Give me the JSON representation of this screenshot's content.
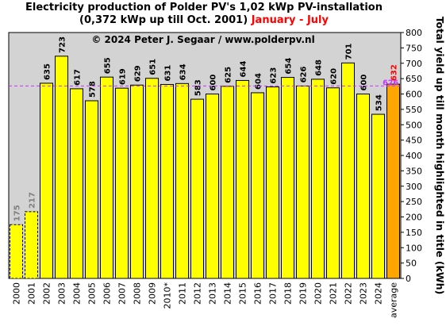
{
  "title": {
    "line1": "Electricity production  of Polder PV's 1,02 kWp PV-installation",
    "line2": "(0,372 kWp up till Oct. 2001)",
    "period": "January - July"
  },
  "copyright": "© 2024 Peter J. Segaar / www.polderpv.nl",
  "colors": {
    "plot_background": "#d3d3d3",
    "bar_fill": "#ffff00",
    "average_fill": "#ffa500",
    "reference_line": "#cc33ff",
    "muted_label": "#808080",
    "period_text": "#ff0000"
  },
  "chart_data": {
    "type": "bar",
    "categories": [
      "2000",
      "2001",
      "2002",
      "2003",
      "2004",
      "2005",
      "2006",
      "2007",
      "2008",
      "2009",
      "2010*",
      "2011",
      "2012",
      "2013",
      "2014",
      "2015",
      "2016",
      "2017",
      "2018",
      "2019",
      "2020",
      "2021",
      "2022",
      "2023",
      "2024",
      "average"
    ],
    "values": [
      175,
      217,
      635,
      723,
      617,
      578,
      655,
      619,
      629,
      651,
      631,
      634,
      583,
      600,
      625,
      644,
      604,
      623,
      654,
      626,
      648,
      620,
      701,
      600,
      534,
      632
    ],
    "labels": [
      "175",
      "217",
      "635",
      "723",
      "617",
      "578",
      "655",
      "619",
      "629",
      "651",
      "631",
      "634",
      "583",
      "600",
      "625",
      "644",
      "604",
      "623",
      "654",
      "626",
      "648",
      "620",
      "701",
      "600",
      "534",
      "632"
    ],
    "bar_styles": [
      "dashed",
      "dashed",
      "normal",
      "normal",
      "normal",
      "normal",
      "normal",
      "normal",
      "normal",
      "normal",
      "normal",
      "normal",
      "normal",
      "normal",
      "normal",
      "normal",
      "normal",
      "normal",
      "normal",
      "normal",
      "normal",
      "normal",
      "normal",
      "normal",
      "normal",
      "average"
    ],
    "reference_line": {
      "value": 626,
      "label": "626"
    },
    "ylabel": "Total yield up till month highlighted in title (kWh)",
    "ylim": [
      0,
      800
    ],
    "yticks": [
      "0",
      "50",
      "100",
      "150",
      "200",
      "250",
      "300",
      "350",
      "400",
      "450",
      "500",
      "550",
      "600",
      "650",
      "700",
      "750",
      "800"
    ],
    "grid": false,
    "legend": "none"
  }
}
